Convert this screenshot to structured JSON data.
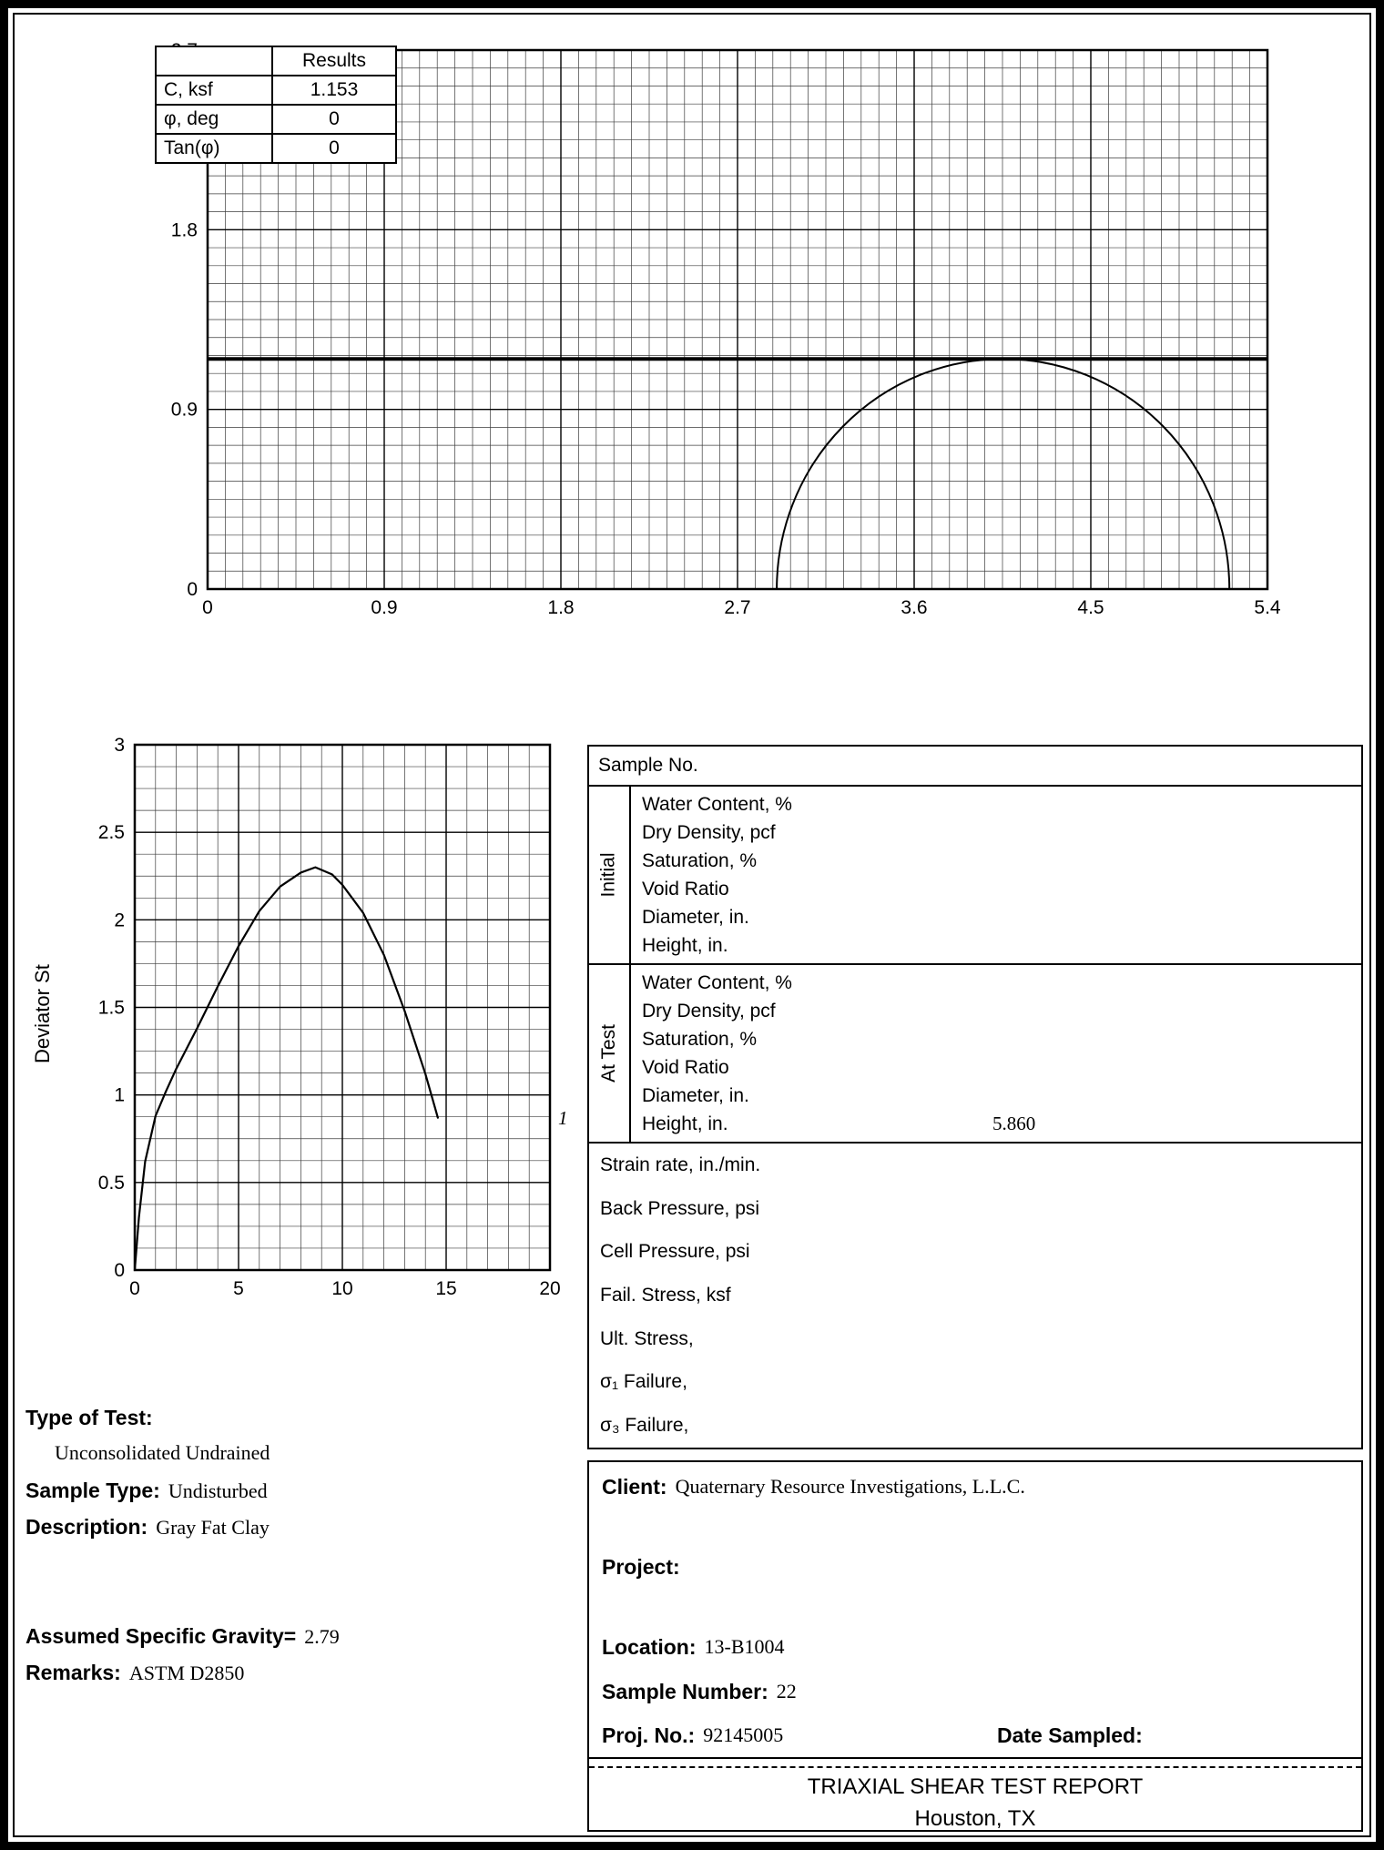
{
  "results_table": {
    "title": "Results",
    "rows": [
      {
        "label": "C, ksf",
        "value": "1.153"
      },
      {
        "label": "φ, deg",
        "value": "0"
      },
      {
        "label": "Tan(φ)",
        "value": "0"
      }
    ]
  },
  "sample_table": {
    "header": "Sample No.",
    "initial_label": "Initial",
    "at_test_label": "At Test",
    "rows": [
      "Water Content, %",
      "Dry Density, pcf",
      "Saturation, %",
      "Void Ratio",
      "Diameter, in.",
      "Height, in."
    ],
    "at_test_height_value": "5.860",
    "stats": [
      {
        "label": "Strain rate, in./min."
      },
      {
        "label": "Back Pressure, psi"
      },
      {
        "label": "Cell Pressure, psi"
      },
      {
        "label": "Fail. Stress, ksf"
      },
      {
        "label": "Ult. Stress,"
      },
      {
        "label": "σ₁  Failure,"
      },
      {
        "label": "σ₃  Failure,"
      }
    ]
  },
  "test_info": {
    "type_of_test_label": "Type of Test:",
    "type_of_test_value": "Unconsolidated Undrained",
    "sample_type_label": "Sample Type:",
    "sample_type_value": "Undisturbed",
    "description_label": "Description:",
    "description_value": "Gray Fat Clay",
    "specific_gravity_label": "Assumed Specific Gravity=",
    "specific_gravity_value": "2.79",
    "remarks_label": "Remarks:",
    "remarks_value": "ASTM D2850"
  },
  "project_info": {
    "client_label": "Client:",
    "client_value": "Quaternary Resource Investigations, L.L.C.",
    "project_label": "Project:",
    "project_value": "",
    "location_label": "Location:",
    "location_value": "13-B1004",
    "sample_number_label": "Sample Number:",
    "sample_number_value": "22",
    "proj_no_label": "Proj. No.:",
    "proj_no_value": "92145005",
    "date_sampled_label": "Date Sampled:",
    "report_title": "TRIAXIAL SHEAR TEST REPORT",
    "report_city": "Houston, TX"
  },
  "chart_data": [
    {
      "name": "mohr_circle_diagram",
      "type": "line",
      "title": "",
      "xlabel": "",
      "ylabel": "",
      "xlim": [
        0,
        5.4
      ],
      "ylim": [
        0,
        2.7
      ],
      "x_ticks": [
        0,
        0.9,
        1.8,
        2.7,
        3.6,
        4.5,
        5.4
      ],
      "y_ticks": [
        0,
        0.9,
        1.8,
        2.7
      ],
      "grid": {
        "minor_x": 0.09,
        "minor_y": 0.09,
        "major_x": 0.9,
        "major_y": 0.9
      },
      "failure_envelope": {
        "cohesion_ksf": 1.153,
        "phi_deg": 0,
        "tan_phi": 0
      },
      "mohr_circles": [
        {
          "sigma3_ksf": 2.9,
          "sigma1_ksf": 5.206
        }
      ]
    },
    {
      "name": "deviator_stress_vs_axial_strain",
      "type": "line",
      "title": "",
      "xlabel": "",
      "ylabel": "Deviator St",
      "xlim": [
        0,
        20
      ],
      "ylim": [
        0,
        3
      ],
      "x_ticks": [
        0,
        5,
        10,
        15,
        20
      ],
      "y_ticks": [
        0,
        0.5,
        1,
        1.5,
        2,
        2.5,
        3
      ],
      "grid": {
        "minor_x": 1,
        "minor_y": 0.125,
        "major_x": 5,
        "major_y": 0.5
      },
      "series": [
        {
          "name": "1",
          "points": [
            [
              0,
              0
            ],
            [
              0.2,
              0.3
            ],
            [
              0.5,
              0.62
            ],
            [
              1,
              0.88
            ],
            [
              1.5,
              1.02
            ],
            [
              2,
              1.15
            ],
            [
              3,
              1.38
            ],
            [
              4,
              1.62
            ],
            [
              5,
              1.85
            ],
            [
              6,
              2.05
            ],
            [
              7,
              2.19
            ],
            [
              8,
              2.27
            ],
            [
              8.7,
              2.3
            ],
            [
              9.5,
              2.26
            ],
            [
              10,
              2.2
            ],
            [
              11,
              2.04
            ],
            [
              12,
              1.8
            ],
            [
              13,
              1.48
            ],
            [
              14,
              1.12
            ],
            [
              14.6,
              0.87
            ]
          ]
        }
      ]
    }
  ]
}
